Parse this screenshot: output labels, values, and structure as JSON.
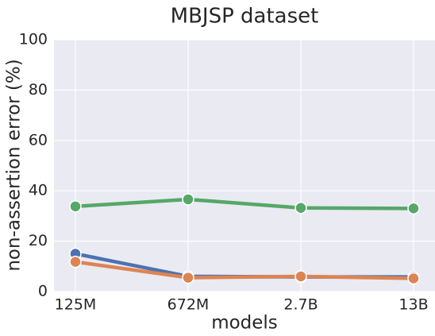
{
  "chart_data": {
    "type": "line",
    "title": "MBJSP dataset",
    "x_label": "models",
    "y_label": "non-assertion error (%)",
    "categories": [
      "125M",
      "672M",
      "2.7B",
      "13B"
    ],
    "series": [
      {
        "color": "#4c72b0",
        "values": [
          15.0,
          6.0,
          5.8,
          5.8
        ]
      },
      {
        "color": "#dd8452",
        "values": [
          11.8,
          5.5,
          6.0,
          5.2
        ]
      },
      {
        "color": "#55a868",
        "values": [
          33.8,
          36.6,
          33.2,
          33.0
        ]
      }
    ],
    "ylim": [
      0,
      100
    ],
    "yticks": [
      0,
      20,
      40,
      60,
      80,
      100
    ],
    "grid": true
  }
}
